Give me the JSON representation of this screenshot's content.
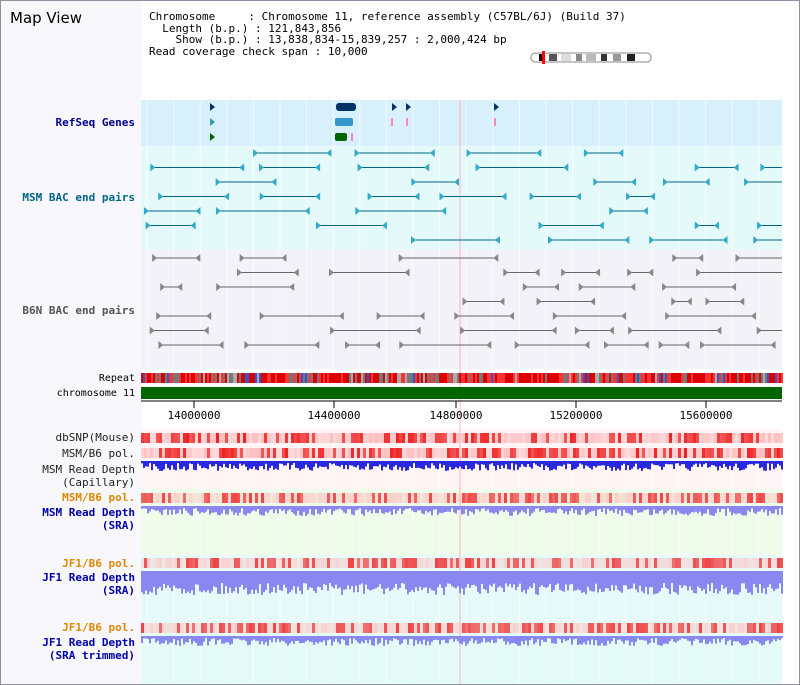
{
  "title": "Map View",
  "info": {
    "chromosome_label": "Chromosome",
    "chromosome_value": "Chromosome 11, reference assembly (C57BL/6J) (Build 37)",
    "length_label": "Length (b.p.)",
    "length_value": "121,843,856",
    "show_label": "Show (b.p.)",
    "show_value": "13,838,834-15,839,257 : 2,000,424 bp",
    "coverage_label": "Read coverage check span",
    "coverage_value": "10,000"
  },
  "tracks": {
    "refseq": "RefSeq Genes",
    "msm_bac": "MSM BAC end pairs",
    "b6n_bac": "B6N BAC end pairs",
    "repeat": "Repeat",
    "chromosome": "chromosome 11",
    "dbsnp": "dbSNP(Mouse)",
    "msm_b6_pol_1": "MSM/B6 pol.",
    "msm_read_depth_cap_1": "MSM Read Depth",
    "msm_read_depth_cap_2": "(Capillary)",
    "msm_b6_pol_2": "MSM/B6 pol.",
    "msm_read_depth_sra_1": "MSM Read Depth",
    "msm_read_depth_sra_2": "(SRA)",
    "jf1_b6_pol_1": "JF1/B6 pol.",
    "jf1_read_depth_sra_1": "JF1 Read Depth",
    "jf1_read_depth_sra_2": "(SRA)",
    "jf1_b6_pol_2": "JF1/B6 pol.",
    "jf1_read_depth_trim_1": "JF1 Read Depth",
    "jf1_read_depth_trim_2": "(SRA trimmed)"
  },
  "axis": {
    "ticks": [
      "14000000",
      "14400000",
      "14800000",
      "15200000",
      "15600000"
    ]
  },
  "colors": {
    "refseq_bg": "#d8f0fc",
    "msm_bac_bg": "#e4fafa",
    "b6n_bac_bg": "#f2f2f8",
    "navy_label": "#000088",
    "teal_label": "#006688",
    "orange_label": "#dd8800",
    "depth_blue": "#2828e0",
    "depth_light": "#8888f0",
    "chrom_green": "#006600"
  }
}
